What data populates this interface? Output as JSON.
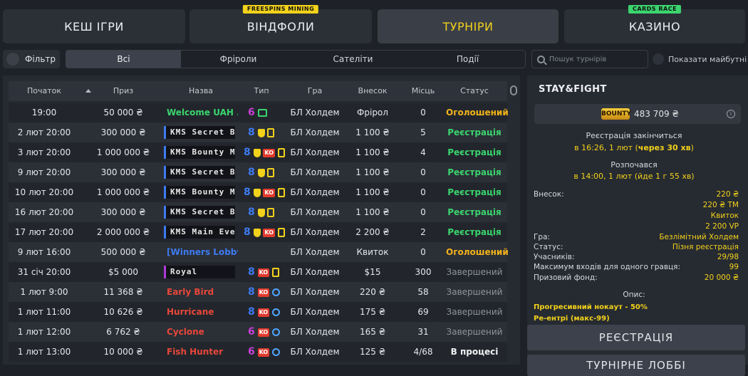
{
  "nav": {
    "cash": "КЕШ ІГРИ",
    "windfalls": "ВІНДФОЛИ",
    "windfalls_badge": "FREESPINS MINING",
    "tournaments": "ТУРНІРИ",
    "casino": "КАЗИНО",
    "casino_badge": "CARDS RACE"
  },
  "filter": {
    "label": "Фільтр",
    "tabs": [
      "Всі",
      "Фріроли",
      "Сателіти",
      "Події"
    ],
    "search_placeholder": "Пошук турнірів",
    "show_future": "Показати майбутні"
  },
  "table": {
    "headers": [
      "Початок",
      "Приз",
      "Назва",
      "Тип",
      "Гра",
      "Внесок",
      "Місць",
      "Статус"
    ],
    "rows": [
      {
        "start": "19:00",
        "prize": "50 000 ₴",
        "name": "Welcome UAH ...",
        "style": "green",
        "typeNum": "6",
        "icons": [
          "ticket"
        ],
        "game": "БЛ Холдем",
        "buyin": "Фрірол",
        "seats": "0",
        "status": "Оголошений",
        "statusKind": "yellow"
      },
      {
        "start": "2 лют 20:00",
        "prize": "300 000 ₴",
        "name": "KMS Secret Bou",
        "style": "kms",
        "typeNum": "8",
        "icons": [
          "trophy",
          "doc"
        ],
        "game": "БЛ Холдем",
        "buyin": "1 100 ₴",
        "seats": "5",
        "status": "Реєстрація",
        "statusKind": "green"
      },
      {
        "start": "3 лют 20:00",
        "prize": "1 000 000 ₴",
        "name": "KMS Bounty Ma",
        "style": "kms",
        "typeNum": "8",
        "icons": [
          "trophy",
          "ko",
          "doc"
        ],
        "game": "БЛ Холдем",
        "buyin": "1 100 ₴",
        "seats": "4",
        "status": "Реєстрація",
        "statusKind": "green"
      },
      {
        "start": "9 лют 20:00",
        "prize": "300 000 ₴",
        "name": "KMS Secret Bou",
        "style": "kms",
        "typeNum": "8",
        "icons": [
          "trophy",
          "doc"
        ],
        "game": "БЛ Холдем",
        "buyin": "1 100 ₴",
        "seats": "0",
        "status": "Реєстрація",
        "statusKind": "green"
      },
      {
        "start": "10 лют 20:00",
        "prize": "1 000 000 ₴",
        "name": "KMS Bounty Ma",
        "style": "kms",
        "typeNum": "8",
        "icons": [
          "trophy",
          "ko",
          "doc"
        ],
        "game": "БЛ Холдем",
        "buyin": "1 100 ₴",
        "seats": "0",
        "status": "Реєстрація",
        "statusKind": "green"
      },
      {
        "start": "16 лют 20:00",
        "prize": "300 000 ₴",
        "name": "KMS Secret Bou",
        "style": "kms",
        "typeNum": "8",
        "icons": [
          "trophy",
          "doc"
        ],
        "game": "БЛ Холдем",
        "buyin": "1 100 ₴",
        "seats": "0",
        "status": "Реєстрація",
        "statusKind": "green"
      },
      {
        "start": "17 лют 20:00",
        "prize": "2 000 000 ₴",
        "name": "KMS Main Even",
        "style": "kms",
        "typeNum": "8",
        "icons": [
          "trophy",
          "ko",
          "doc"
        ],
        "game": "БЛ Холдем",
        "buyin": "2 200 ₴",
        "seats": "2",
        "status": "Реєстрація",
        "statusKind": "green"
      },
      {
        "start": "9 лют 16:00",
        "prize": "500 000 ₴",
        "name": "[Winners Lobby]...",
        "style": "blue",
        "typeNum": "",
        "icons": [],
        "game": "БЛ Холдем",
        "buyin": "Квиток",
        "seats": "0",
        "status": "Оголошений",
        "statusKind": "yellow"
      },
      {
        "start": "31 січ 20:00",
        "prize": "$5 000",
        "name": "Royal",
        "style": "royal",
        "typeNum": "8",
        "icons": [
          "ko",
          "doc"
        ],
        "game": "БЛ Холдем",
        "buyin": "$15",
        "seats": "300",
        "status": "Завершений",
        "statusKind": "grey"
      },
      {
        "start": "1 лют 9:00",
        "prize": "11 368 ₴",
        "name": "Early Bird",
        "style": "red",
        "typeNum": "8",
        "icons": [
          "ko",
          "timer"
        ],
        "game": "БЛ Холдем",
        "buyin": "220 ₴",
        "seats": "58",
        "status": "Завершений",
        "statusKind": "grey"
      },
      {
        "start": "1 лют 11:00",
        "prize": "10 626 ₴",
        "name": "Hurricane",
        "style": "red",
        "typeNum": "8",
        "icons": [
          "ko",
          "timer"
        ],
        "game": "БЛ Холдем",
        "buyin": "175 ₴",
        "seats": "69",
        "status": "Завершений",
        "statusKind": "grey"
      },
      {
        "start": "1 лют 12:00",
        "prize": "6 762 ₴",
        "name": "Cyclone",
        "style": "red",
        "typeNum": "6",
        "icons": [
          "ko",
          "timer"
        ],
        "game": "БЛ Холдем",
        "buyin": "165 ₴",
        "seats": "31",
        "status": "Завершений",
        "statusKind": "grey"
      },
      {
        "start": "1 лют 13:00",
        "prize": "10 000 ₴",
        "name": "Fish Hunter",
        "style": "red",
        "typeNum": "6",
        "icons": [
          "ko",
          "timer"
        ],
        "game": "БЛ Холдем",
        "buyin": "125 ₴",
        "seats": "4/68",
        "status": "В процесі",
        "statusKind": "white"
      }
    ]
  },
  "panel": {
    "title": "STAY&FIGHT",
    "bounty_logo": "BOUNTY",
    "bounty_value": "483 709 ₴",
    "reg_ends_label": "Реєстрація закінчиться",
    "reg_ends_prefix": "в 16:26, 1 лют (",
    "reg_ends_bold": "через 30 хв",
    "reg_ends_suffix": ")",
    "started_label": "Розпочався",
    "started_value": "в 14:00, 1 лют (йде 1 г 55 хв)",
    "buyin_label": "Внесок:",
    "buyin_values": [
      "220 ₴",
      "220 ₴ TM",
      "Квиток",
      "2 200 VP"
    ],
    "game_label": "Гра:",
    "game_value": "Безлімітний Холдем",
    "status_label": "Статус:",
    "status_value": "Пізня реєстрація",
    "players_label": "Учасників:",
    "players_value": "29/98",
    "max_entries_label": "Максимум входів для одного гравця:",
    "max_entries_value": "99",
    "prize_label": "Призовий фонд:",
    "prize_value": "20 000 ₴",
    "desc_label": "Опис:",
    "desc_line1": "Прогресивний нокаут - 50%",
    "desc_line2": "Ре-ентрі (макс-99)",
    "register_button": "РЕЄСТРАЦІЯ",
    "lobby_button": "ТУРНІРНЕ ЛОББІ"
  },
  "colors": {
    "accent_yellow": "#f2d21b",
    "status_green": "#3bd46e",
    "kms_blue": "#3e7bf0",
    "royal_purple": "#b03ad6",
    "ko_red": "#e23b2e"
  }
}
